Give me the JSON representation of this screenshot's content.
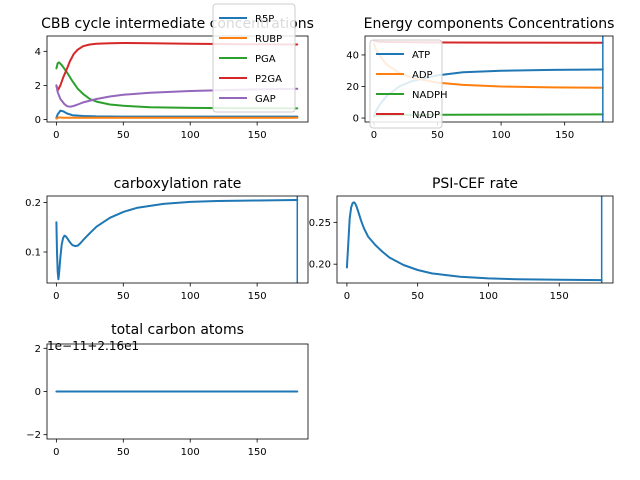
{
  "colors": {
    "c0": "#1f77b4",
    "c1": "#ff7f0e",
    "c2": "#2ca02c",
    "c3": "#d62728",
    "c4": "#9467bd",
    "axis": "#000000",
    "legend_border": "#cccccc"
  },
  "chart_data": [
    {
      "type": "line",
      "title": "CBB cycle intermediate concentrations",
      "xlabel": "",
      "ylabel": "",
      "xlim": [
        -7,
        188
      ],
      "ylim": [
        -0.15,
        4.9
      ],
      "xticks": [
        "0",
        "50",
        "100",
        "150"
      ],
      "yticks": [
        "0",
        "2",
        "4"
      ],
      "legend_placement": "top-right",
      "series": [
        {
          "name": "R5P",
          "color": "c0",
          "x": [
            0,
            1,
            3,
            5,
            8,
            12,
            20,
            30,
            50,
            100,
            180
          ],
          "y": [
            0.1,
            0.3,
            0.52,
            0.48,
            0.35,
            0.25,
            0.2,
            0.18,
            0.17,
            0.17,
            0.17
          ]
        },
        {
          "name": "RUBP",
          "color": "c1",
          "x": [
            0,
            2,
            5,
            10,
            20,
            40,
            80,
            180
          ],
          "y": [
            0.05,
            0.12,
            0.1,
            0.1,
            0.1,
            0.1,
            0.1,
            0.1
          ]
        },
        {
          "name": "PGA",
          "color": "c2",
          "x": [
            0,
            1,
            2,
            4,
            8,
            12,
            16,
            20,
            25,
            30,
            40,
            50,
            70,
            100,
            140,
            180
          ],
          "y": [
            3.0,
            3.3,
            3.35,
            3.2,
            2.75,
            2.25,
            1.8,
            1.5,
            1.2,
            1.05,
            0.88,
            0.8,
            0.72,
            0.68,
            0.66,
            0.65
          ]
        },
        {
          "name": "P2GA",
          "color": "c3",
          "x": [
            0,
            1,
            3,
            5,
            8,
            10,
            13,
            16,
            20,
            25,
            30,
            40,
            50,
            70,
            100,
            140,
            180
          ],
          "y": [
            2.0,
            1.7,
            2.0,
            2.45,
            3.0,
            3.4,
            3.85,
            4.1,
            4.3,
            4.4,
            4.45,
            4.48,
            4.49,
            4.47,
            4.45,
            4.42,
            4.4
          ]
        },
        {
          "name": "GAP",
          "color": "c4",
          "x": [
            0,
            1,
            3,
            6,
            8,
            10,
            12,
            15,
            20,
            30,
            40,
            50,
            70,
            100,
            140,
            180
          ],
          "y": [
            2.0,
            1.6,
            1.2,
            0.9,
            0.78,
            0.75,
            0.77,
            0.85,
            1.0,
            1.2,
            1.35,
            1.45,
            1.57,
            1.67,
            1.75,
            1.8
          ]
        }
      ]
    },
    {
      "type": "line",
      "title": "Energy components Concentrations",
      "xlabel": "",
      "ylabel": "",
      "xlim": [
        -7,
        188
      ],
      "ylim": [
        -2.5,
        52
      ],
      "xticks": [
        "0",
        "50",
        "100",
        "150"
      ],
      "yticks": [
        "0",
        "20",
        "40"
      ],
      "legend_placement": "left",
      "series": [
        {
          "name": "ATP",
          "color": "c0",
          "x": [
            0,
            2,
            5,
            10,
            20,
            30,
            50,
            70,
            100,
            140,
            180
          ],
          "y": [
            1.5,
            5.0,
            9.0,
            14.0,
            20.0,
            23.5,
            27.0,
            29.0,
            30.0,
            30.5,
            30.8
          ]
        },
        {
          "name": "ADP",
          "color": "c1",
          "x": [
            0,
            2,
            5,
            10,
            20,
            30,
            50,
            70,
            100,
            140,
            180
          ],
          "y": [
            47.0,
            43.0,
            39.0,
            34.0,
            28.5,
            25.5,
            22.5,
            21.0,
            20.0,
            19.4,
            19.2
          ]
        },
        {
          "name": "NADPH",
          "color": "c2",
          "x": [
            0,
            3,
            10,
            30,
            60,
            100,
            180
          ],
          "y": [
            1.0,
            1.6,
            1.8,
            2.0,
            2.1,
            2.2,
            2.3
          ]
        },
        {
          "name": "NADP",
          "color": "c3",
          "x": [
            0,
            3,
            10,
            30,
            60,
            100,
            180
          ],
          "y": [
            49.0,
            48.4,
            48.2,
            48.0,
            47.9,
            47.8,
            47.7
          ]
        }
      ],
      "vlines": [
        {
          "x": 180,
          "color": "c0"
        }
      ]
    },
    {
      "type": "line",
      "title": "carboxylation rate",
      "xlabel": "",
      "ylabel": "",
      "xlim": [
        -7,
        188
      ],
      "ylim": [
        0.0375,
        0.213
      ],
      "xticks": [
        "0",
        "50",
        "100",
        "150"
      ],
      "yticks": [
        "0.1",
        "0.2"
      ],
      "series": [
        {
          "name": "",
          "color": "c0",
          "x": [
            0,
            0.5,
            1,
            1.5,
            2,
            3,
            4,
            5,
            6,
            7,
            8,
            10,
            12,
            14,
            16,
            18,
            20,
            25,
            30,
            40,
            50,
            60,
            80,
            100,
            120,
            150,
            180
          ],
          "y": [
            0.16,
            0.1,
            0.06,
            0.045,
            0.055,
            0.09,
            0.115,
            0.128,
            0.133,
            0.132,
            0.128,
            0.12,
            0.114,
            0.112,
            0.113,
            0.118,
            0.124,
            0.138,
            0.151,
            0.169,
            0.181,
            0.189,
            0.197,
            0.201,
            0.203,
            0.204,
            0.205
          ]
        }
      ],
      "vlines": [
        {
          "x": 180,
          "color": "c0"
        }
      ]
    },
    {
      "type": "line",
      "title": "PSI-CEF rate",
      "xlabel": "",
      "ylabel": "",
      "xlim": [
        -7,
        188
      ],
      "ylim": [
        0.1775,
        0.2815
      ],
      "xticks": [
        "0",
        "50",
        "100",
        "150"
      ],
      "yticks": [
        "0.20",
        "0.25"
      ],
      "series": [
        {
          "name": "",
          "color": "c0",
          "x": [
            0,
            1,
            2,
            3,
            4,
            5,
            6,
            7,
            8,
            10,
            12,
            15,
            20,
            25,
            30,
            40,
            50,
            60,
            80,
            100,
            120,
            150,
            180
          ],
          "y": [
            0.196,
            0.225,
            0.255,
            0.268,
            0.273,
            0.274,
            0.272,
            0.268,
            0.263,
            0.252,
            0.243,
            0.233,
            0.223,
            0.215,
            0.208,
            0.199,
            0.193,
            0.189,
            0.185,
            0.183,
            0.182,
            0.1815,
            0.181
          ]
        }
      ],
      "vlines": [
        {
          "x": 180,
          "color": "c0"
        }
      ]
    },
    {
      "type": "line",
      "title": "total carbon atoms",
      "xlabel": "",
      "ylabel": "",
      "offset_text": "1e−11+2.16e1",
      "xlim": [
        -7,
        188
      ],
      "ylim": [
        -2.2,
        2.2
      ],
      "xticks": [
        "0",
        "50",
        "100",
        "150"
      ],
      "yticks": [
        "−2",
        "0",
        "2"
      ],
      "series": [
        {
          "name": "",
          "color": "c0",
          "x": [
            0,
            180
          ],
          "y": [
            0,
            0
          ]
        }
      ]
    }
  ]
}
